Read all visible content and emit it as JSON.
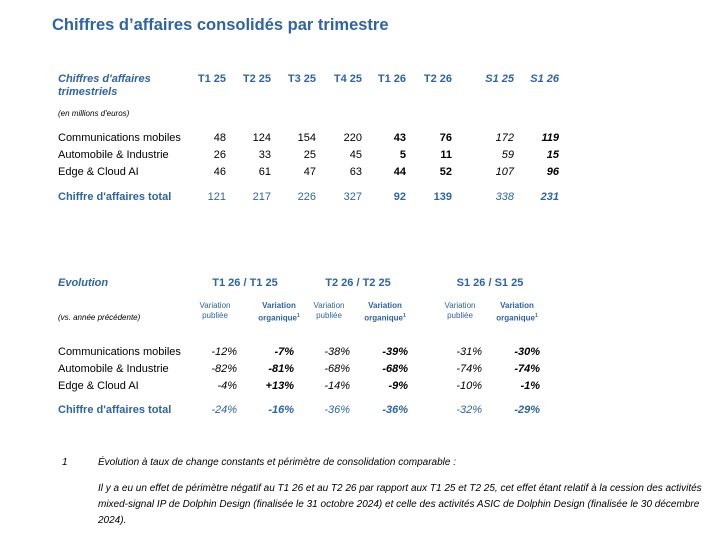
{
  "title": "Chiffres d’affaires consolidés par trimestre",
  "quarterly": {
    "header_label": "Chiffres d'affaires trimestriels",
    "unit_note": "(en millions d'euros)",
    "columns": [
      "T1 25",
      "T2 25",
      "T3 25",
      "T4 25",
      "T1 26",
      "T2 26",
      "S1 25",
      "S1 26"
    ],
    "rows": [
      {
        "label": "Communications mobiles",
        "values": [
          "48",
          "124",
          "154",
          "220",
          "43",
          "76",
          "172",
          "119"
        ]
      },
      {
        "label": "Automobile & Industrie",
        "values": [
          "26",
          "33",
          "25",
          "45",
          "5",
          "11",
          "59",
          "15"
        ]
      },
      {
        "label": "Edge & Cloud AI",
        "values": [
          "46",
          "61",
          "47",
          "63",
          "44",
          "52",
          "107",
          "96"
        ]
      }
    ],
    "total": {
      "label": "Chiffre d'affaires total",
      "values": [
        "121",
        "217",
        "226",
        "327",
        "92",
        "139",
        "338",
        "231"
      ]
    }
  },
  "evolution": {
    "header_label": "Evolution",
    "note": "(vs. année précédente)",
    "groups": [
      "T1 26 / T1 25",
      "T2 26 / T2 25",
      "S1 26 / S1 25"
    ],
    "sub_published": [
      "Variation",
      "publiée"
    ],
    "sub_organic": [
      "Variation",
      "organique"
    ],
    "footnote_mark": "1",
    "rows": [
      {
        "label": "Communications mobiles",
        "values": [
          "-12%",
          "-7%",
          "-38%",
          "-39%",
          "-31%",
          "-30%"
        ]
      },
      {
        "label": "Automobile & Industrie",
        "values": [
          "-82%",
          "-81%",
          "-68%",
          "-68%",
          "-74%",
          "-74%"
        ]
      },
      {
        "label": "Edge & Cloud AI",
        "values": [
          "-4%",
          "+13%",
          "-14%",
          "-9%",
          "-10%",
          "-1%"
        ]
      }
    ],
    "total": {
      "label": "Chiffre d'affaires total",
      "values": [
        "-24%",
        "-16%",
        "-36%",
        "-36%",
        "-32%",
        "-29%"
      ]
    }
  },
  "footnote": {
    "number": "1",
    "heading": "Évolution à taux de change constants et périmètre de consolidation comparable :",
    "body": "Il y a eu un effet de périmètre négatif au T1 26 et au T2 26 par rapport aux T1 25 et T2 25, cet effet étant relatif à la cession des activités mixed-signal IP de Dolphin Design (finalisée le 31 octobre 2024) et celle des activités ASIC de Dolphin Design (finalisée le 30 décembre 2024)."
  }
}
